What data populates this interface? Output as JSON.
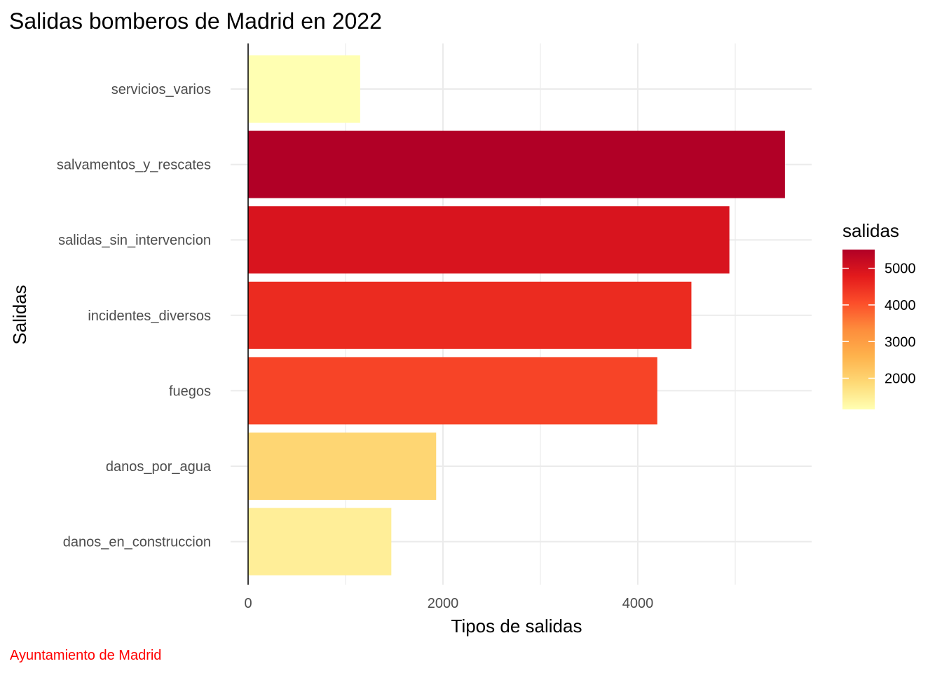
{
  "chart_data": {
    "type": "bar",
    "orientation": "horizontal",
    "title": "Salidas bomberos de Madrid en 2022",
    "xlabel": "Tipos de salidas",
    "ylabel": "Salidas",
    "caption": "Ayuntamiento de Madrid",
    "categories": [
      "servicios_varios",
      "salvamentos_y_rescates",
      "salidas_sin_intervencion",
      "incidentes_diversos",
      "fuegos",
      "danos_por_agua",
      "danos_en_construccion"
    ],
    "values": [
      1150,
      5510,
      4940,
      4550,
      4200,
      1930,
      1470
    ],
    "xlim": [
      0,
      5800
    ],
    "xticks": [
      "0",
      "2000",
      "4000"
    ],
    "grid": true,
    "legend": {
      "title": "salidas",
      "placement": "right",
      "ticks": [
        "2000",
        "3000",
        "4000",
        "5000"
      ],
      "range": [
        1150,
        5510
      ],
      "colors": [
        "#FFFFB2",
        "#FED976",
        "#FEB24C",
        "#FD8D3C",
        "#FC4E2A",
        "#E31A1C",
        "#B10026"
      ]
    }
  }
}
